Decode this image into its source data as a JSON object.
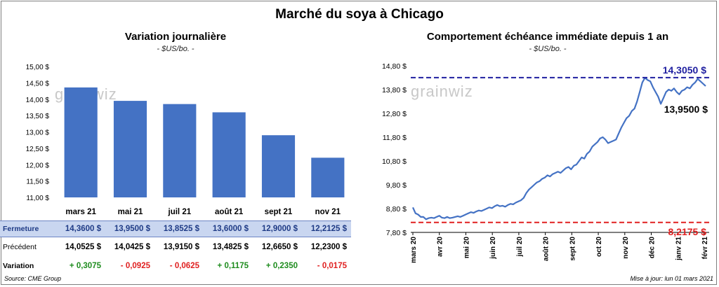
{
  "title": "Marché du soya à Chicago",
  "left_panel": {
    "title": "Variation  journalière",
    "unit": "- $US/bo. -"
  },
  "right_panel": {
    "title": "Comportement  échéance immédiate depuis 1 an",
    "unit": "- $US/bo. -"
  },
  "watermark": "grainwiz",
  "chart_data": [
    {
      "type": "bar",
      "categories": [
        "mars 21",
        "mai 21",
        "juil 21",
        "août 21",
        "sept 21",
        "nov 21"
      ],
      "values": [
        14.36,
        13.95,
        13.8525,
        13.6,
        12.9,
        12.2125
      ],
      "ylim": [
        11.0,
        15.0
      ],
      "yticks": [
        "11,00 $",
        "11,50 $",
        "12,00 $",
        "12,50 $",
        "13,00 $",
        "13,50 $",
        "14,00 $",
        "14,50 $",
        "15,00 $"
      ],
      "bar_color": "#4472c4",
      "table": {
        "rows": [
          {
            "label": "Fermeture",
            "values": [
              "14,3600  $",
              "13,9500  $",
              "13,8525  $",
              "13,6000  $",
              "12,9000  $",
              "12,2125  $"
            ]
          },
          {
            "label": "Précédent",
            "values": [
              "14,0525  $",
              "14,0425  $",
              "13,9150  $",
              "13,4825  $",
              "12,6650  $",
              "12,2300  $"
            ]
          },
          {
            "label": "Variation",
            "values": [
              "+ 0,3075",
              "- 0,0925",
              "- 0,0625",
              "+ 0,1175",
              "+ 0,2350",
              "- 0,0175"
            ]
          }
        ]
      }
    },
    {
      "type": "line",
      "ylim": [
        7.8,
        14.8
      ],
      "yticks": [
        "7,80 $",
        "8,80 $",
        "9,80 $",
        "10,80 $",
        "11,80 $",
        "12,80 $",
        "13,80 $",
        "14,80 $"
      ],
      "xticks": [
        "mars 20",
        "avr 20",
        "mai 20",
        "juin 20",
        "juil 20",
        "août 20",
        "sept 20",
        "oct 20",
        "nov 20",
        "déc 20",
        "janv 21",
        "févr 21"
      ],
      "line_color": "#4472c4",
      "max_line": {
        "value": 14.305,
        "label": "14,3050  $",
        "color": "#1f1fa0"
      },
      "min_line": {
        "value": 8.2175,
        "label": "8,2175  $",
        "color": "#e02020"
      },
      "last_label": "13,9500 $",
      "series": [
        {
          "values": [
            8.85,
            8.6,
            8.55,
            8.45,
            8.45,
            8.35,
            8.4,
            8.42,
            8.4,
            8.45,
            8.5,
            8.42,
            8.4,
            8.45,
            8.4,
            8.42,
            8.45,
            8.48,
            8.45,
            8.5,
            8.55,
            8.6,
            8.65,
            8.62,
            8.68,
            8.72,
            8.7,
            8.75,
            8.8,
            8.85,
            8.82,
            8.9,
            8.95,
            8.9,
            8.92,
            8.88,
            8.95,
            9.0,
            8.98,
            9.05,
            9.1,
            9.15,
            9.25,
            9.45,
            9.6,
            9.7,
            9.8,
            9.9,
            9.95,
            10.05,
            10.1,
            10.2,
            10.15,
            10.25,
            10.3,
            10.35,
            10.3,
            10.4,
            10.5,
            10.55,
            10.45,
            10.6,
            10.65,
            10.8,
            10.95,
            10.9,
            11.1,
            11.2,
            11.4,
            11.5,
            11.6,
            11.75,
            11.8,
            11.7,
            11.55,
            11.6,
            11.65,
            11.7,
            11.95,
            12.2,
            12.4,
            12.6,
            12.7,
            12.9,
            13.0,
            13.3,
            13.7,
            14.1,
            14.3,
            14.2,
            14.15,
            13.9,
            13.7,
            13.5,
            13.2,
            13.45,
            13.7,
            13.8,
            13.75,
            13.85,
            13.7,
            13.6,
            13.75,
            13.8,
            13.9,
            13.85,
            14.0,
            14.1,
            14.25,
            14.15,
            14.05,
            13.95
          ]
        }
      ]
    }
  ],
  "footer": {
    "source": "Source: CME Group",
    "updated": "Mise à jour: lun 01 mars 2021"
  }
}
